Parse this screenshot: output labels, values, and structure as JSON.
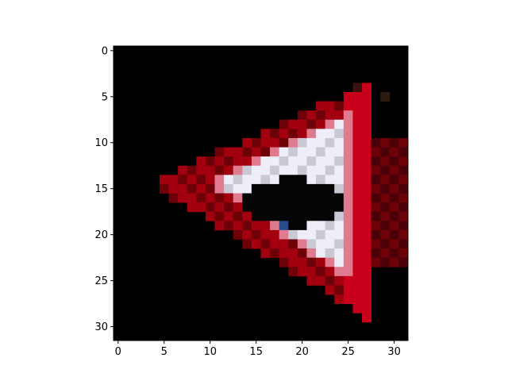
{
  "chart_data": {
    "type": "heatmap",
    "title": "",
    "xlabel": "",
    "ylabel": "",
    "xlim": [
      -0.5,
      31.5
    ],
    "ylim": [
      31.5,
      -0.5
    ],
    "x_ticks": [
      0,
      5,
      10,
      15,
      20,
      25,
      30
    ],
    "y_ticks": [
      0,
      5,
      10,
      15,
      20,
      25,
      30
    ],
    "x_tick_labels": [
      "0",
      "5",
      "10",
      "15",
      "20",
      "25",
      "30"
    ],
    "y_tick_labels": [
      "0",
      "5",
      "10",
      "15",
      "20",
      "25",
      "30"
    ],
    "image_size": [
      32,
      32
    ],
    "grid": false,
    "background_color": "#000000",
    "palette": {
      "dark_red": "#6e0008",
      "red": "#a3000f",
      "bright_red": "#c8001a",
      "pink": "#e07a8e",
      "white": "#eeeef8",
      "light_gray": "#c9c9d4",
      "black": "#050505",
      "blue": "#2a4a8a",
      "olive": "#8a9a50",
      "slate": "#5a6a80"
    },
    "description_of_values": "32x32 pixel image of a red-bordered triangular traffic sign with a white interior and a dark symbol in the middle"
  }
}
